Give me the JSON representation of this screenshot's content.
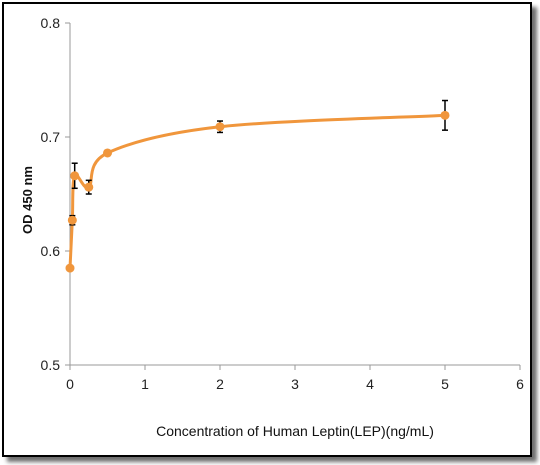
{
  "chart_data": {
    "type": "scatter",
    "title": "",
    "xlabel": "Concentration of Human Leptin(LEP)(ng/mL)",
    "ylabel": "OD 450 nm",
    "xlim": [
      0,
      6
    ],
    "ylim": [
      0.5,
      0.8
    ],
    "x_ticks": [
      "0",
      "1",
      "2",
      "3",
      "4",
      "5",
      "6"
    ],
    "y_ticks": [
      "0.5",
      "0.6",
      "0.7",
      "0.8"
    ],
    "grid": false,
    "legend": "none",
    "series_color": "#f0963c",
    "series": [
      {
        "x": [
          0,
          0.03125,
          0.0625,
          0.25,
          0.5,
          2,
          5
        ],
        "y": [
          0.585,
          0.627,
          0.666,
          0.656,
          0.686,
          0.709,
          0.719
        ],
        "error": [
          0,
          0.004,
          0.011,
          0.006,
          0.002,
          0.005,
          0.013
        ]
      }
    ]
  }
}
